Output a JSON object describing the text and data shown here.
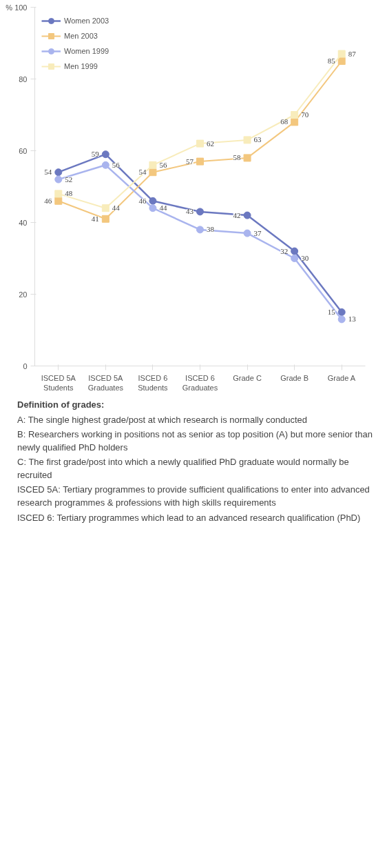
{
  "chart_data": {
    "type": "line",
    "categories": [
      "ISCED 5A Students",
      "ISCED 5A Graduates",
      "ISCED 6 Students",
      "ISCED 6 Graduates",
      "Grade C",
      "Grade B",
      "Grade A"
    ],
    "series": [
      {
        "name": "Women 2003",
        "color": "#6b78c0",
        "marker": "circle",
        "values": [
          54,
          59,
          46,
          43,
          42,
          32,
          15
        ]
      },
      {
        "name": "Men 2003",
        "color": "#f3c77e",
        "marker": "square",
        "values": [
          46,
          41,
          54,
          57,
          58,
          68,
          85
        ]
      },
      {
        "name": "Women 1999",
        "color": "#a9b4ee",
        "marker": "circle",
        "values": [
          52,
          56,
          44,
          38,
          37,
          30,
          13
        ]
      },
      {
        "name": "Men 1999",
        "color": "#f8ecbb",
        "marker": "square",
        "values": [
          48,
          44,
          56,
          62,
          63,
          70,
          87
        ]
      }
    ],
    "ylim": [
      0,
      100
    ],
    "yticks": [
      0,
      20,
      40,
      60,
      80,
      {
        "value": 100,
        "label": "% 100"
      }
    ],
    "data_labels": true,
    "legend": "top left",
    "grid": false,
    "annotations": [
      "Definition of grades:",
      "A: The single highest grade/post at which research is normally conducted",
      "B: Researchers working in positions not as senior as top position (A) but more senior than newly qualified PhD holders",
      "C: The first grade/post into which a newly qualified PhD graduate would normally be recruited",
      "ISCED 5A: Tertiary programmes to provide sufficient qualifications to enter into advanced research programmes & professions with high skills requirements",
      "ISCED 6: Tertiary programmes which lead to an advanced research qualification (PhD)"
    ]
  }
}
